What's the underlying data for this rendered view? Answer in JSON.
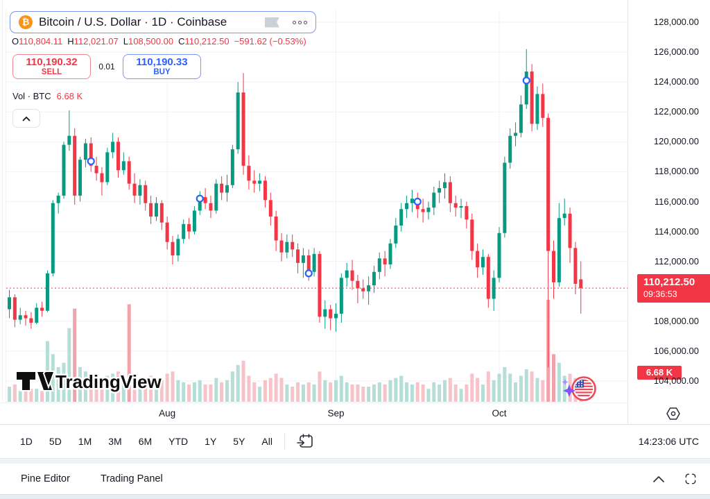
{
  "header": {
    "symbol_title": "Bitcoin / U.S. Dollar · 1D · Coinbase",
    "ohlc": {
      "open_label": "O",
      "open": "110,804.11",
      "high_label": "H",
      "high": "112,021.07",
      "low_label": "L",
      "low": "108,500.00",
      "close_label": "C",
      "close": "110,212.50",
      "change": "−591.62 (−0.53%)"
    }
  },
  "trade": {
    "sell_price": "110,190.32",
    "sell_label": "SELL",
    "spread": "0.01",
    "buy_price": "110,190.33",
    "buy_label": "BUY"
  },
  "legend": {
    "vol_label": "Vol · BTC",
    "vol_value": "6.68 K"
  },
  "watermark": {
    "text": "TradingView"
  },
  "icons": {
    "bitcoin": "₿",
    "symbol_flag": "flag-banner",
    "more": "three-dots",
    "collapse": "chevron-up",
    "calendar": "go-to-date-calendar",
    "scale_settings": "hexagon-gear",
    "panel_collapse": "chevron-up",
    "fullscreen": "expand-brackets",
    "event_marker": "blue-circle",
    "us_flag_event": "us-flag-in-red-ring",
    "sparkle": "purple-four-point-star"
  },
  "price_axis": {
    "labels": [
      {
        "text": "128,000.00",
        "value": 128000
      },
      {
        "text": "126,000.00",
        "value": 126000
      },
      {
        "text": "124,000.00",
        "value": 124000
      },
      {
        "text": "122,000.00",
        "value": 122000
      },
      {
        "text": "120,000.00",
        "value": 120000
      },
      {
        "text": "118,000.00",
        "value": 118000
      },
      {
        "text": "116,000.00",
        "value": 116000
      },
      {
        "text": "114,000.00",
        "value": 114000
      },
      {
        "text": "112,000.00",
        "value": 112000
      },
      {
        "text": "108,000.00",
        "value": 108000
      },
      {
        "text": "106,000.00",
        "value": 106000
      },
      {
        "text": "104,000.00",
        "value": 104000
      }
    ],
    "last_badge": {
      "price": "110,212.50",
      "countdown": "09:36:53"
    },
    "volume_badge": "6.68 K"
  },
  "time_axis": {
    "months": [
      {
        "label": "Aug",
        "index": 29
      },
      {
        "label": "Sep",
        "index": 60
      },
      {
        "label": "Oct",
        "index": 90
      }
    ]
  },
  "toolbar": {
    "ranges": [
      "1D",
      "5D",
      "1M",
      "3M",
      "6M",
      "YTD",
      "1Y",
      "5Y",
      "All"
    ],
    "clock": "14:23:06 UTC"
  },
  "bottom_bar": {
    "items": [
      "Pine Editor",
      "Trading Panel"
    ]
  },
  "chart_data": {
    "type": "candlestick",
    "title": "Bitcoin / U.S. Dollar · 1D · Coinbase",
    "unit": "USD thousands",
    "volume_unit": "K BTC",
    "ylim": [
      103.5,
      128.5
    ],
    "grid": {
      "h_step": 2000,
      "h_range": [
        104000,
        128000
      ],
      "v_month_indices": [
        29,
        60,
        90
      ]
    },
    "last_price": 110.2125,
    "candles": [
      [
        108.8,
        110.1,
        108.2,
        109.6,
        7
      ],
      [
        109.6,
        109.8,
        107.6,
        108.1,
        8
      ],
      [
        108.1,
        108.9,
        107.8,
        108.4,
        5
      ],
      [
        108.4,
        108.7,
        107.7,
        108.2,
        5
      ],
      [
        108.2,
        108.6,
        107.5,
        107.9,
        6
      ],
      [
        107.9,
        109.2,
        107.8,
        108.9,
        6
      ],
      [
        108.9,
        109.3,
        108.3,
        108.7,
        5
      ],
      [
        108.7,
        111.4,
        108.6,
        111.2,
        28
      ],
      [
        111.2,
        116.1,
        111.0,
        115.9,
        22
      ],
      [
        115.9,
        116.6,
        115.2,
        116.4,
        16
      ],
      [
        116.4,
        120.0,
        116.2,
        119.8,
        18
      ],
      [
        119.8,
        122.1,
        119.4,
        120.4,
        34
      ],
      [
        120.4,
        120.9,
        115.8,
        116.4,
        43
      ],
      [
        116.4,
        119.0,
        116.0,
        118.8,
        16
      ],
      [
        118.8,
        120.2,
        118.3,
        119.9,
        14
      ],
      [
        119.9,
        120.3,
        118.0,
        118.4,
        12
      ],
      [
        118.4,
        119.0,
        117.4,
        117.9,
        10
      ],
      [
        117.9,
        118.3,
        116.4,
        117.3,
        11
      ],
      [
        117.3,
        119.6,
        117.1,
        119.3,
        12
      ],
      [
        119.3,
        120.6,
        118.9,
        120.0,
        13
      ],
      [
        120.0,
        120.3,
        117.6,
        118.1,
        14
      ],
      [
        118.1,
        119.3,
        117.8,
        118.7,
        9
      ],
      [
        118.7,
        119.0,
        116.8,
        117.2,
        45
      ],
      [
        117.2,
        117.9,
        115.9,
        116.4,
        13
      ],
      [
        116.4,
        117.5,
        115.8,
        117.1,
        10
      ],
      [
        117.1,
        117.4,
        115.4,
        115.9,
        11
      ],
      [
        115.9,
        116.4,
        114.5,
        115.0,
        12
      ],
      [
        115.0,
        116.3,
        114.7,
        115.9,
        9
      ],
      [
        115.9,
        116.1,
        114.1,
        114.6,
        10
      ],
      [
        114.6,
        115.0,
        112.8,
        113.3,
        13
      ],
      [
        113.3,
        113.7,
        111.8,
        112.4,
        14
      ],
      [
        112.4,
        113.8,
        112.0,
        113.5,
        10
      ],
      [
        113.5,
        114.8,
        113.2,
        114.5,
        9
      ],
      [
        114.5,
        114.9,
        113.5,
        114.0,
        8
      ],
      [
        114.0,
        115.7,
        113.8,
        115.4,
        9
      ],
      [
        115.4,
        116.7,
        115.1,
        116.3,
        10
      ],
      [
        116.3,
        116.9,
        115.5,
        115.9,
        8
      ],
      [
        115.9,
        116.4,
        114.9,
        115.4,
        8
      ],
      [
        115.4,
        117.5,
        115.2,
        117.2,
        11
      ],
      [
        117.2,
        117.7,
        116.1,
        116.6,
        9
      ],
      [
        116.6,
        117.8,
        116.0,
        117.1,
        10
      ],
      [
        117.1,
        119.8,
        116.9,
        119.5,
        14
      ],
      [
        119.5,
        124.0,
        119.2,
        123.3,
        17
      ],
      [
        123.3,
        124.6,
        117.8,
        118.4,
        19
      ],
      [
        118.4,
        119.1,
        116.8,
        117.4,
        12
      ],
      [
        117.4,
        118.1,
        116.6,
        117.2,
        9
      ],
      [
        117.2,
        117.9,
        116.7,
        117.4,
        7
      ],
      [
        117.4,
        117.7,
        115.6,
        116.1,
        10
      ],
      [
        116.1,
        116.6,
        114.4,
        115.0,
        11
      ],
      [
        115.0,
        115.4,
        112.7,
        113.4,
        13
      ],
      [
        113.4,
        113.9,
        112.0,
        112.6,
        11
      ],
      [
        112.6,
        113.8,
        112.2,
        113.3,
        8
      ],
      [
        113.3,
        113.8,
        112.3,
        112.8,
        7
      ],
      [
        112.8,
        113.2,
        111.2,
        111.9,
        9
      ],
      [
        111.9,
        112.9,
        110.9,
        112.4,
        8
      ],
      [
        112.4,
        112.8,
        110.7,
        111.3,
        9
      ],
      [
        111.3,
        112.9,
        111.0,
        112.5,
        8
      ],
      [
        112.5,
        112.7,
        107.9,
        108.3,
        14
      ],
      [
        108.3,
        109.4,
        107.5,
        108.8,
        10
      ],
      [
        108.8,
        109.1,
        107.4,
        108.2,
        9
      ],
      [
        108.2,
        109.2,
        107.3,
        108.5,
        10
      ],
      [
        108.5,
        111.2,
        107.9,
        110.9,
        12
      ],
      [
        110.9,
        111.9,
        110.3,
        111.4,
        9
      ],
      [
        111.4,
        112.1,
        110.1,
        110.7,
        8
      ],
      [
        110.7,
        111.1,
        109.2,
        110.2,
        8
      ],
      [
        110.2,
        110.8,
        109.5,
        110.0,
        7
      ],
      [
        110.0,
        111.0,
        109.1,
        110.4,
        7
      ],
      [
        110.4,
        111.7,
        109.9,
        111.3,
        8
      ],
      [
        111.3,
        112.6,
        110.8,
        112.2,
        9
      ],
      [
        112.2,
        112.7,
        111.0,
        111.8,
        8
      ],
      [
        111.8,
        113.5,
        111.5,
        113.2,
        10
      ],
      [
        113.2,
        114.9,
        112.9,
        114.4,
        11
      ],
      [
        114.4,
        115.9,
        114.0,
        115.5,
        12
      ],
      [
        115.5,
        116.4,
        114.9,
        115.9,
        9
      ],
      [
        115.9,
        116.8,
        115.3,
        116.2,
        8
      ],
      [
        116.2,
        116.6,
        114.9,
        115.5,
        9
      ],
      [
        115.5,
        116.2,
        114.6,
        115.3,
        8
      ],
      [
        115.3,
        116.0,
        114.8,
        115.6,
        6
      ],
      [
        115.6,
        117.0,
        115.1,
        116.6,
        9
      ],
      [
        116.6,
        117.4,
        115.9,
        116.9,
        8
      ],
      [
        116.9,
        117.9,
        116.2,
        117.3,
        10
      ],
      [
        117.3,
        117.7,
        115.3,
        115.9,
        11
      ],
      [
        115.9,
        116.4,
        115.0,
        115.6,
        8
      ],
      [
        115.6,
        116.2,
        114.9,
        115.7,
        6
      ],
      [
        115.7,
        116.0,
        114.2,
        114.8,
        8
      ],
      [
        114.8,
        115.2,
        112.1,
        112.7,
        13
      ],
      [
        112.7,
        113.2,
        110.9,
        111.6,
        11
      ],
      [
        111.6,
        112.8,
        111.1,
        112.3,
        8
      ],
      [
        112.3,
        112.5,
        108.9,
        109.5,
        14
      ],
      [
        109.5,
        111.4,
        108.7,
        110.9,
        10
      ],
      [
        110.9,
        114.3,
        110.6,
        113.9,
        13
      ],
      [
        113.9,
        119.0,
        113.6,
        118.6,
        16
      ],
      [
        118.6,
        120.9,
        118.2,
        120.4,
        13
      ],
      [
        120.4,
        121.3,
        119.7,
        120.6,
        9
      ],
      [
        120.6,
        123.1,
        120.3,
        122.5,
        12
      ],
      [
        122.5,
        126.2,
        122.2,
        124.7,
        15
      ],
      [
        124.7,
        125.2,
        120.7,
        121.2,
        14
      ],
      [
        121.2,
        123.7,
        120.8,
        123.2,
        11
      ],
      [
        123.2,
        123.9,
        121.0,
        121.6,
        10
      ],
      [
        121.6,
        121.9,
        104.9,
        112.7,
        47
      ],
      [
        112.7,
        113.4,
        109.5,
        110.6,
        22
      ],
      [
        110.6,
        115.9,
        110.3,
        114.9,
        18
      ],
      [
        114.9,
        116.2,
        114.4,
        115.2,
        12
      ],
      [
        115.2,
        115.6,
        111.9,
        112.9,
        13
      ],
      [
        112.9,
        113.3,
        109.8,
        110.5,
        11
      ],
      [
        110.8,
        112.0,
        108.5,
        110.2125,
        6.68
      ]
    ],
    "markers": [
      {
        "index": 15,
        "price": 118.7
      },
      {
        "index": 35,
        "price": 116.2
      },
      {
        "index": 55,
        "price": 111.2
      },
      {
        "index": 75,
        "price": 116.0
      },
      {
        "index": 95,
        "price": 124.1
      }
    ],
    "colors": {
      "up": "#089981",
      "down": "#f23645",
      "vol_up": "#b5ded6",
      "vol_down": "#f6c3c8",
      "vol_down_hot": "#f2a2ab",
      "accent": "#2962ff",
      "last_line": "#f23645",
      "grid": "#f0f2f7"
    }
  }
}
